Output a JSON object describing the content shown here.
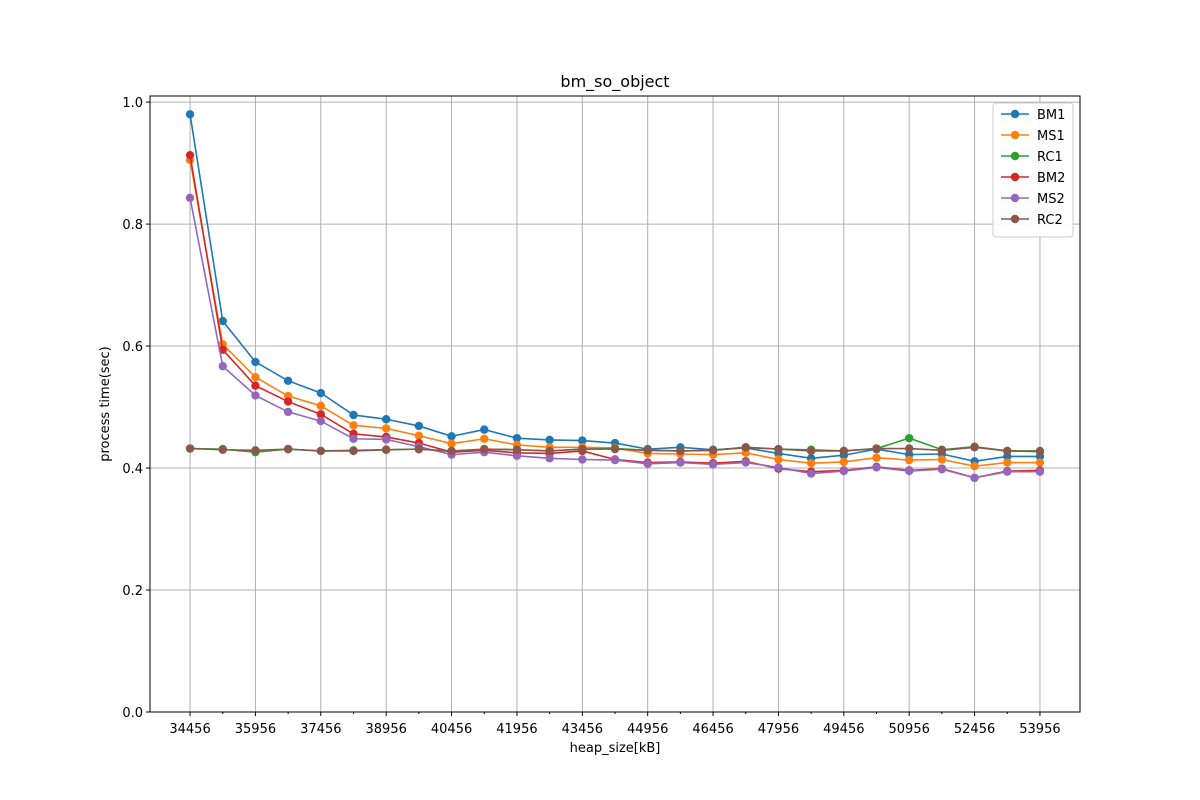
{
  "chart_data": {
    "type": "line",
    "title": "bm_so_object",
    "xlabel": "heap_size[kB]",
    "ylabel": "process time(sec)",
    "x": [
      34456,
      35206,
      35956,
      36706,
      37456,
      38206,
      38956,
      39706,
      40456,
      41206,
      41956,
      42706,
      43456,
      44206,
      44956,
      45706,
      46456,
      47206,
      47956,
      48706,
      49456,
      50206,
      50956,
      51706,
      52456,
      53206,
      53956
    ],
    "xticks": [
      34456,
      35956,
      37456,
      38956,
      40456,
      41956,
      43456,
      44956,
      46456,
      47956,
      49456,
      50956,
      52456,
      53956
    ],
    "xtick_labels": [
      "34456",
      "35956",
      "37456",
      "38956",
      "40456",
      "41956",
      "43456",
      "44956",
      "46456",
      "47956",
      "49456",
      "50956",
      "52456",
      "53956"
    ],
    "xlim": [
      33537,
      54875
    ],
    "ylim": [
      0.0,
      1.01
    ],
    "yticks": [
      0.0,
      0.2,
      0.4,
      0.6,
      0.8,
      1.0
    ],
    "ytick_labels": [
      "0.0",
      "0.2",
      "0.4",
      "0.6",
      "0.8",
      "1.0"
    ],
    "grid": true,
    "legend_position": "top-right",
    "series": [
      {
        "name": "BM1",
        "color": "#1f77b4",
        "values": [
          0.98,
          0.641,
          0.574,
          0.543,
          0.523,
          0.487,
          0.48,
          0.469,
          0.452,
          0.463,
          0.449,
          0.446,
          0.445,
          0.441,
          0.431,
          0.434,
          0.43,
          0.433,
          0.424,
          0.416,
          0.421,
          0.431,
          0.422,
          0.423,
          0.411,
          0.419,
          0.419
        ]
      },
      {
        "name": "MS1",
        "color": "#ff7f0e",
        "values": [
          0.905,
          0.603,
          0.549,
          0.518,
          0.502,
          0.47,
          0.465,
          0.453,
          0.44,
          0.448,
          0.438,
          0.434,
          0.434,
          0.433,
          0.424,
          0.423,
          0.422,
          0.425,
          0.414,
          0.408,
          0.41,
          0.417,
          0.413,
          0.414,
          0.403,
          0.409,
          0.409
        ]
      },
      {
        "name": "RC1",
        "color": "#2ca02c",
        "values": [
          0.432,
          0.431,
          0.426,
          0.431,
          0.428,
          0.429,
          0.43,
          0.431,
          0.427,
          0.431,
          0.43,
          0.428,
          0.431,
          0.432,
          0.429,
          0.428,
          0.429,
          0.434,
          0.431,
          0.43,
          0.428,
          0.432,
          0.449,
          0.43,
          0.435,
          0.428,
          0.428
        ]
      },
      {
        "name": "BM2",
        "color": "#d62728",
        "values": [
          0.913,
          0.594,
          0.535,
          0.509,
          0.488,
          0.456,
          0.451,
          0.441,
          0.426,
          0.429,
          0.425,
          0.424,
          0.428,
          0.414,
          0.409,
          0.41,
          0.408,
          0.411,
          0.399,
          0.394,
          0.396,
          0.402,
          0.396,
          0.399,
          0.384,
          0.395,
          0.396
        ]
      },
      {
        "name": "MS2",
        "color": "#9467bd",
        "values": [
          0.843,
          0.567,
          0.519,
          0.492,
          0.477,
          0.448,
          0.447,
          0.435,
          0.422,
          0.426,
          0.42,
          0.416,
          0.414,
          0.413,
          0.407,
          0.409,
          0.406,
          0.409,
          0.401,
          0.391,
          0.395,
          0.401,
          0.395,
          0.398,
          0.384,
          0.394,
          0.394
        ]
      },
      {
        "name": "RC2",
        "color": "#8c564b",
        "values": [
          0.432,
          0.43,
          0.429,
          0.431,
          0.428,
          0.428,
          0.43,
          0.431,
          0.428,
          0.431,
          0.43,
          0.428,
          0.431,
          0.431,
          0.429,
          0.428,
          0.429,
          0.434,
          0.431,
          0.428,
          0.428,
          0.432,
          0.432,
          0.429,
          0.434,
          0.428,
          0.427
        ]
      }
    ]
  }
}
